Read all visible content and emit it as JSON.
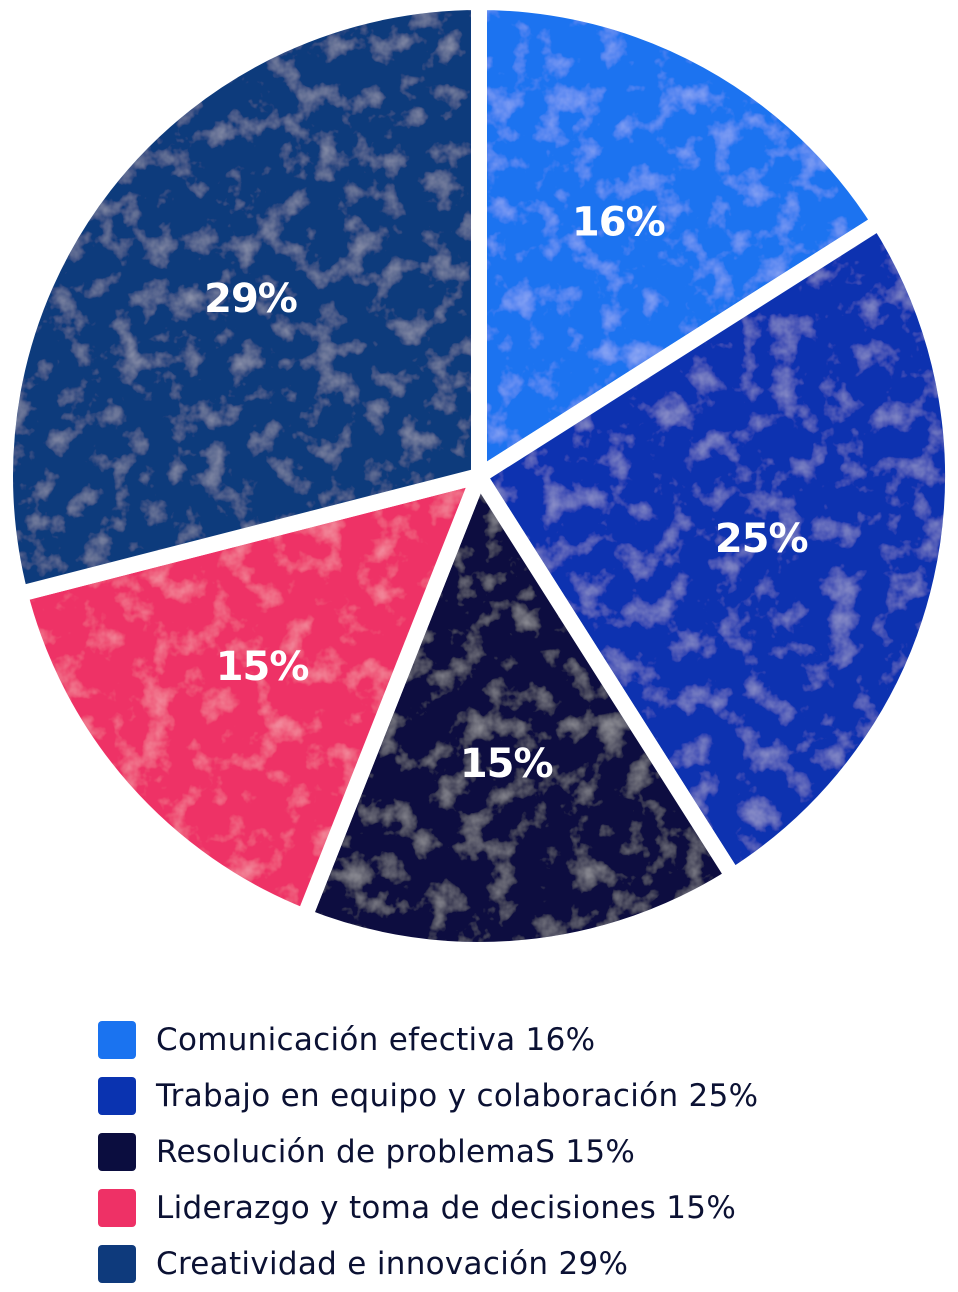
{
  "chart_data": {
    "type": "pie",
    "title": "",
    "slices": [
      {
        "label": "Comunicación efectiva 16%",
        "value": 16,
        "display": "16%",
        "color": "#1a73f0"
      },
      {
        "label": "Trabajo en equipo y colaboración 25%",
        "value": 25,
        "display": "25%",
        "color": "#0a33b0"
      },
      {
        "label": "Resolución de problemaS 15%",
        "value": 15,
        "display": "15%",
        "color": "#0b0d3f"
      },
      {
        "label": "Liderazgo y toma de decisiones 15%",
        "value": 15,
        "display": "15%",
        "color": "#ee3166"
      },
      {
        "label": "Creatividad e innovación 29%",
        "value": 29,
        "display": "29%",
        "color": "#0e3a7c"
      }
    ],
    "legend_position": "bottom-left"
  }
}
